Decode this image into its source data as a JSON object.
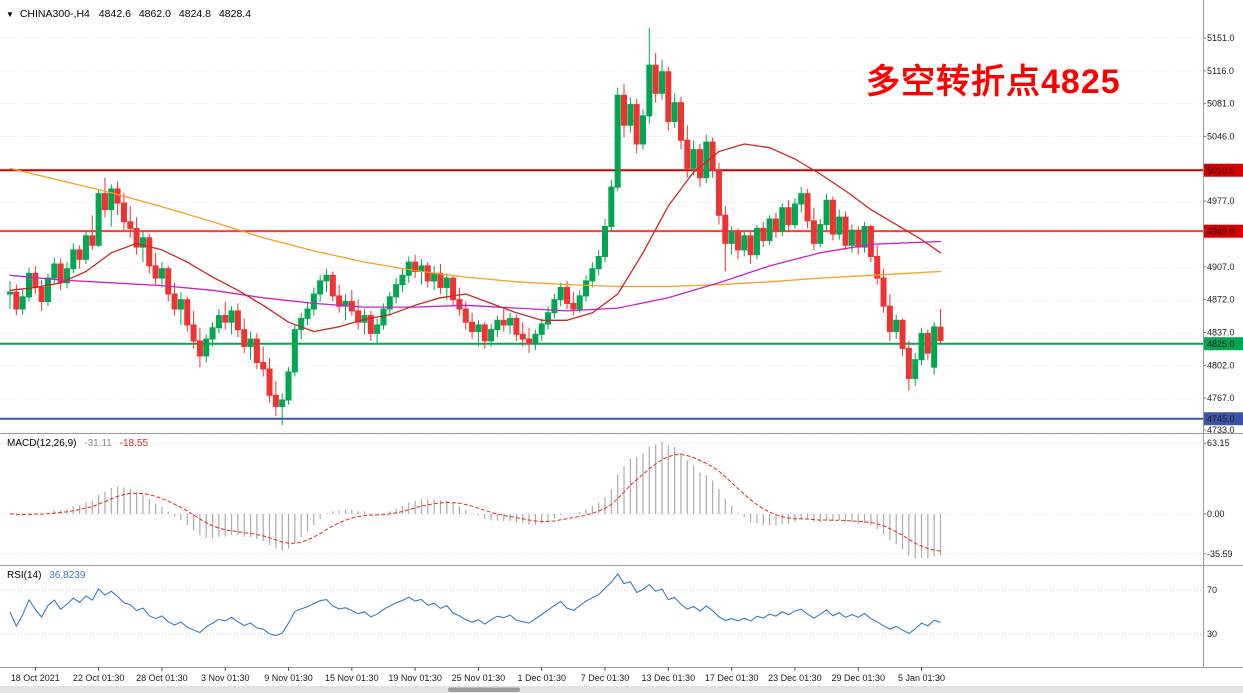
{
  "header": {
    "symbol": "CHINA300-,H4",
    "open": "4842.6",
    "high": "4862.0",
    "low": "4824.8",
    "close": "4828.4"
  },
  "annotation": {
    "text": "多空转折点4825",
    "color": "#FF0000"
  },
  "chart_data": {
    "type": "candlestick",
    "symbol": "CHINA300-",
    "timeframe": "H4",
    "title": "CHINA300- H4 candlestick chart with MACD and RSI",
    "colors": {
      "bull": "#00A651",
      "bear": "#EF3232",
      "grid": "#E4E4E4",
      "separator": "#9a9a9a"
    },
    "price_axis": {
      "min": 4733,
      "max": 5151,
      "tick_step": 35,
      "labels": [
        5151.0,
        5116.0,
        5081.0,
        5046.0,
        4977.0,
        4907.0,
        4872.0,
        4837.0,
        4802.0,
        4767.0,
        4733.0
      ]
    },
    "level_lines": [
      {
        "price": 5010.0,
        "label": "5010.0",
        "line_color": "#CC0000",
        "badge_color": "#D40000"
      },
      {
        "price": 4945.0,
        "label": "4945.0",
        "line_color": "#FF3A3A",
        "badge_color": "#D40000"
      },
      {
        "price": 4825.0,
        "label": "4825.0",
        "line_color": "#00A651",
        "badge_color": "#00A651"
      },
      {
        "price": 4745.0,
        "label": "4745.0",
        "line_color": "#3A55A8",
        "badge_color": "#3A55A8"
      }
    ],
    "candles": [
      [
        4878,
        4892,
        4862,
        4880
      ],
      [
        4880,
        4888,
        4855,
        4862
      ],
      [
        4862,
        4884,
        4856,
        4875
      ],
      [
        4875,
        4906,
        4870,
        4900
      ],
      [
        4900,
        4908,
        4878,
        4885
      ],
      [
        4885,
        4893,
        4860,
        4870
      ],
      [
        4870,
        4900,
        4865,
        4895
      ],
      [
        4895,
        4917,
        4890,
        4910
      ],
      [
        4910,
        4916,
        4882,
        4890
      ],
      [
        4890,
        4912,
        4884,
        4905
      ],
      [
        4905,
        4932,
        4900,
        4925
      ],
      [
        4925,
        4930,
        4905,
        4915
      ],
      [
        4915,
        4946,
        4910,
        4940
      ],
      [
        4940,
        4962,
        4925,
        4930
      ],
      [
        4930,
        4990,
        4928,
        4985
      ],
      [
        4985,
        5002,
        4960,
        4968
      ],
      [
        4968,
        4995,
        4950,
        4990
      ],
      [
        4990,
        4998,
        4962,
        4975
      ],
      [
        4975,
        4986,
        4945,
        4955
      ],
      [
        4955,
        4972,
        4938,
        4948
      ],
      [
        4948,
        4960,
        4920,
        4928
      ],
      [
        4928,
        4945,
        4912,
        4938
      ],
      [
        4938,
        4942,
        4900,
        4908
      ],
      [
        4908,
        4922,
        4888,
        4895
      ],
      [
        4895,
        4912,
        4885,
        4905
      ],
      [
        4905,
        4908,
        4870,
        4878
      ],
      [
        4878,
        4890,
        4855,
        4862
      ],
      [
        4862,
        4880,
        4845,
        4872
      ],
      [
        4872,
        4875,
        4838,
        4845
      ],
      [
        4845,
        4860,
        4820,
        4828
      ],
      [
        4828,
        4842,
        4800,
        4812
      ],
      [
        4812,
        4835,
        4805,
        4830
      ],
      [
        4830,
        4848,
        4822,
        4842
      ],
      [
        4842,
        4862,
        4836,
        4855
      ],
      [
        4855,
        4870,
        4840,
        4848
      ],
      [
        4848,
        4865,
        4835,
        4860
      ],
      [
        4860,
        4868,
        4832,
        4840
      ],
      [
        4840,
        4852,
        4815,
        4822
      ],
      [
        4822,
        4838,
        4808,
        4830
      ],
      [
        4830,
        4836,
        4798,
        4805
      ],
      [
        4805,
        4822,
        4790,
        4798
      ],
      [
        4798,
        4810,
        4762,
        4770
      ],
      [
        4770,
        4785,
        4748,
        4758
      ],
      [
        4758,
        4772,
        4738,
        4765
      ],
      [
        4765,
        4800,
        4760,
        4795
      ],
      [
        4795,
        4845,
        4790,
        4840
      ],
      [
        4840,
        4858,
        4830,
        4852
      ],
      [
        4852,
        4870,
        4845,
        4862
      ],
      [
        4862,
        4885,
        4855,
        4878
      ],
      [
        4878,
        4898,
        4870,
        4892
      ],
      [
        4892,
        4905,
        4880,
        4898
      ],
      [
        4898,
        4902,
        4870,
        4876
      ],
      [
        4876,
        4888,
        4858,
        4865
      ],
      [
        4865,
        4878,
        4850,
        4870
      ],
      [
        4870,
        4882,
        4855,
        4860
      ],
      [
        4860,
        4872,
        4840,
        4848
      ],
      [
        4848,
        4862,
        4835,
        4855
      ],
      [
        4855,
        4860,
        4828,
        4836
      ],
      [
        4836,
        4852,
        4825,
        4845
      ],
      [
        4845,
        4868,
        4840,
        4862
      ],
      [
        4862,
        4880,
        4855,
        4875
      ],
      [
        4875,
        4895,
        4868,
        4888
      ],
      [
        4888,
        4905,
        4880,
        4898
      ],
      [
        4898,
        4918,
        4890,
        4912
      ],
      [
        4912,
        4920,
        4895,
        4902
      ],
      [
        4902,
        4915,
        4888,
        4908
      ],
      [
        4908,
        4912,
        4885,
        4892
      ],
      [
        4892,
        4908,
        4882,
        4900
      ],
      [
        4900,
        4910,
        4878,
        4885
      ],
      [
        4885,
        4900,
        4872,
        4895
      ],
      [
        4895,
        4898,
        4865,
        4872
      ],
      [
        4872,
        4885,
        4855,
        4862
      ],
      [
        4862,
        4870,
        4840,
        4848
      ],
      [
        4848,
        4858,
        4830,
        4838
      ],
      [
        4838,
        4850,
        4822,
        4845
      ],
      [
        4845,
        4848,
        4820,
        4828
      ],
      [
        4828,
        4846,
        4822,
        4840
      ],
      [
        4840,
        4855,
        4832,
        4850
      ],
      [
        4850,
        4862,
        4838,
        4845
      ],
      [
        4845,
        4858,
        4835,
        4852
      ],
      [
        4852,
        4856,
        4828,
        4835
      ],
      [
        4835,
        4848,
        4822,
        4830
      ],
      [
        4830,
        4842,
        4815,
        4825
      ],
      [
        4825,
        4840,
        4818,
        4835
      ],
      [
        4835,
        4852,
        4828,
        4846
      ],
      [
        4846,
        4865,
        4840,
        4858
      ],
      [
        4858,
        4878,
        4852,
        4872
      ],
      [
        4872,
        4890,
        4865,
        4885
      ],
      [
        4885,
        4892,
        4862,
        4868
      ],
      [
        4868,
        4880,
        4855,
        4862
      ],
      [
        4862,
        4882,
        4858,
        4876
      ],
      [
        4876,
        4898,
        4870,
        4892
      ],
      [
        4892,
        4912,
        4885,
        4905
      ],
      [
        4905,
        4925,
        4898,
        4918
      ],
      [
        4918,
        4958,
        4912,
        4950
      ],
      [
        4950,
        5000,
        4945,
        4992
      ],
      [
        4992,
        5098,
        4988,
        5090
      ],
      [
        5090,
        5102,
        5045,
        5058
      ],
      [
        5058,
        5088,
        5050,
        5080
      ],
      [
        5080,
        5086,
        5028,
        5038
      ],
      [
        5038,
        5075,
        5032,
        5068
      ],
      [
        5068,
        5162,
        5060,
        5122
      ],
      [
        5122,
        5135,
        5082,
        5092
      ],
      [
        5092,
        5128,
        5085,
        5115
      ],
      [
        5115,
        5120,
        5052,
        5062
      ],
      [
        5062,
        5092,
        5055,
        5082
      ],
      [
        5082,
        5088,
        5032,
        5042
      ],
      [
        5042,
        5058,
        5002,
        5012
      ],
      [
        5012,
        5042,
        5005,
        5032
      ],
      [
        5032,
        5038,
        4992,
        5002
      ],
      [
        5002,
        5048,
        4996,
        5040
      ],
      [
        5040,
        5045,
        5002,
        5010
      ],
      [
        5010,
        5018,
        4952,
        4962
      ],
      [
        4962,
        4972,
        4902,
        4932
      ],
      [
        4932,
        4950,
        4920,
        4944
      ],
      [
        4944,
        4948,
        4915,
        4925
      ],
      [
        4925,
        4945,
        4918,
        4940
      ],
      [
        4940,
        4944,
        4910,
        4920
      ],
      [
        4920,
        4952,
        4915,
        4948
      ],
      [
        4948,
        4955,
        4928,
        4935
      ],
      [
        4935,
        4962,
        4930,
        4958
      ],
      [
        4958,
        4965,
        4938,
        4945
      ],
      [
        4945,
        4975,
        4940,
        4970
      ],
      [
        4970,
        4978,
        4944,
        4952
      ],
      [
        4952,
        4980,
        4948,
        4974
      ],
      [
        4974,
        4992,
        4965,
        4985
      ],
      [
        4985,
        4990,
        4948,
        4956
      ],
      [
        4956,
        4970,
        4925,
        4932
      ],
      [
        4932,
        4958,
        4928,
        4952
      ],
      [
        4952,
        4985,
        4946,
        4978
      ],
      [
        4978,
        4982,
        4935,
        4942
      ],
      [
        4942,
        4968,
        4936,
        4960
      ],
      [
        4960,
        4966,
        4925,
        4930
      ],
      [
        4930,
        4952,
        4922,
        4946
      ],
      [
        4946,
        4950,
        4920,
        4928
      ],
      [
        4928,
        4955,
        4922,
        4950
      ],
      [
        4950,
        4952,
        4912,
        4918
      ],
      [
        4918,
        4930,
        4888,
        4895
      ],
      [
        4895,
        4905,
        4858,
        4865
      ],
      [
        4865,
        4878,
        4828,
        4838
      ],
      [
        4838,
        4856,
        4830,
        4850
      ],
      [
        4850,
        4852,
        4812,
        4820
      ],
      [
        4820,
        4828,
        4775,
        4788
      ],
      [
        4788,
        4815,
        4780,
        4808
      ],
      [
        4808,
        4842,
        4802,
        4836
      ],
      [
        4836,
        4840,
        4808,
        4815
      ],
      [
        4800,
        4848,
        4792,
        4843
      ],
      [
        4842.6,
        4862,
        4824.8,
        4828.4
      ]
    ],
    "moving_averages": [
      {
        "name": "ma-slow",
        "color": "#F5A020",
        "points": [
          [
            0,
            5012
          ],
          [
            8,
            4999
          ],
          [
            16,
            4986
          ],
          [
            24,
            4971
          ],
          [
            32,
            4955
          ],
          [
            40,
            4938
          ],
          [
            48,
            4924
          ],
          [
            56,
            4912
          ],
          [
            64,
            4903
          ],
          [
            72,
            4896
          ],
          [
            80,
            4891
          ],
          [
            88,
            4888
          ],
          [
            96,
            4886
          ],
          [
            104,
            4886
          ],
          [
            112,
            4888
          ],
          [
            120,
            4891
          ],
          [
            128,
            4895
          ],
          [
            136,
            4898
          ],
          [
            147,
            4902
          ]
        ]
      },
      {
        "name": "ma-medium",
        "color": "#C623C6",
        "points": [
          [
            0,
            4898
          ],
          [
            8,
            4893
          ],
          [
            16,
            4890
          ],
          [
            24,
            4887
          ],
          [
            32,
            4882
          ],
          [
            40,
            4874
          ],
          [
            48,
            4868
          ],
          [
            56,
            4864
          ],
          [
            64,
            4864
          ],
          [
            72,
            4866
          ],
          [
            80,
            4863
          ],
          [
            88,
            4860
          ],
          [
            96,
            4863
          ],
          [
            104,
            4874
          ],
          [
            112,
            4890
          ],
          [
            120,
            4908
          ],
          [
            128,
            4922
          ],
          [
            136,
            4931
          ],
          [
            147,
            4934
          ]
        ]
      },
      {
        "name": "ma-fast",
        "color": "#C62828",
        "points": [
          [
            0,
            4882
          ],
          [
            4,
            4885
          ],
          [
            8,
            4890
          ],
          [
            12,
            4902
          ],
          [
            16,
            4922
          ],
          [
            20,
            4932
          ],
          [
            24,
            4925
          ],
          [
            28,
            4912
          ],
          [
            32,
            4896
          ],
          [
            36,
            4882
          ],
          [
            40,
            4866
          ],
          [
            44,
            4848
          ],
          [
            48,
            4838
          ],
          [
            52,
            4843
          ],
          [
            56,
            4851
          ],
          [
            60,
            4856
          ],
          [
            64,
            4866
          ],
          [
            68,
            4874
          ],
          [
            72,
            4878
          ],
          [
            76,
            4868
          ],
          [
            80,
            4858
          ],
          [
            84,
            4850
          ],
          [
            88,
            4850
          ],
          [
            92,
            4858
          ],
          [
            96,
            4878
          ],
          [
            100,
            4922
          ],
          [
            104,
            4972
          ],
          [
            108,
            5008
          ],
          [
            112,
            5030
          ],
          [
            116,
            5038
          ],
          [
            120,
            5034
          ],
          [
            124,
            5022
          ],
          [
            128,
            5006
          ],
          [
            132,
            4988
          ],
          [
            136,
            4968
          ],
          [
            140,
            4952
          ],
          [
            144,
            4936
          ],
          [
            147,
            4922
          ]
        ]
      }
    ],
    "dates": {
      "tick_indices": [
        4,
        14,
        24,
        34,
        44,
        54,
        64,
        74,
        84,
        94,
        104,
        114,
        124,
        134,
        144
      ],
      "labels": [
        "18 Oct 2021",
        "22 Oct 01:30",
        "28 Oct 01:30",
        "3 Nov 01:30",
        "9 Nov 01:30",
        "15 Nov 01:30",
        "19 Nov 01:30",
        "25 Nov 01:30",
        "1 Dec 01:30",
        "7 Dec 01:30",
        "13 Dec 01:30",
        "17 Dec 01:30",
        "23 Dec 01:30",
        "29 Dec 01:30",
        "5 Jan 01:30"
      ]
    },
    "indicators": {
      "macd": {
        "name": "MACD(12,26,9)",
        "value_main": "-31.11",
        "value_signal": "-18.55",
        "axis": [
          {
            "v": 63.15,
            "label": "63.15"
          },
          {
            "v": 0,
            "label": "0.00"
          },
          {
            "v": -35.59,
            "label": "-35.59"
          }
        ],
        "histogram_color": "#ABABAB",
        "signal_color": "#D93025"
      },
      "rsi": {
        "name": "RSI(14)",
        "value": "36.8239",
        "levels": [
          {
            "v": 70,
            "label": "70"
          },
          {
            "v": 30,
            "label": "30"
          }
        ],
        "line_color": "#3B7BBE"
      }
    }
  }
}
